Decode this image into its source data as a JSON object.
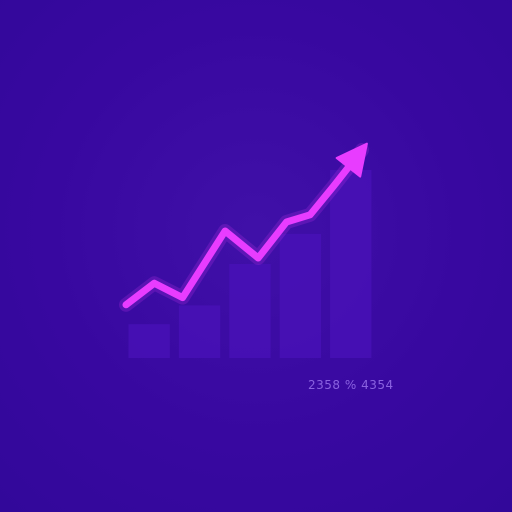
{
  "colors": {
    "background": "#3a0aa0",
    "bars": "#4a12b8",
    "line": "#e83cff",
    "caption": "#8a62e0"
  },
  "chart_data": {
    "type": "bar",
    "categories": [
      "",
      "",
      "",
      "",
      ""
    ],
    "values": [
      0.18,
      0.28,
      0.5,
      0.66,
      1.0
    ],
    "trend_line": {
      "type": "line",
      "x": [
        0.0,
        0.12,
        0.24,
        0.42,
        0.56,
        0.68,
        0.78,
        0.88,
        1.0
      ],
      "y": [
        0.14,
        0.26,
        0.18,
        0.55,
        0.4,
        0.6,
        0.64,
        0.8,
        1.0
      ],
      "arrowhead": true
    },
    "annotation": "2358 % 4354",
    "grid": false,
    "legend": "none"
  }
}
